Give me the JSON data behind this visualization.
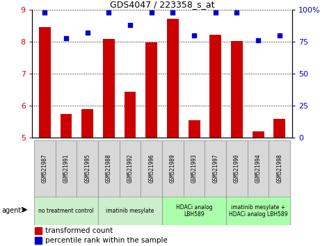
{
  "title": "GDS4047 / 223358_s_at",
  "samples": [
    "GSM521987",
    "GSM521991",
    "GSM521995",
    "GSM521988",
    "GSM521992",
    "GSM521996",
    "GSM521989",
    "GSM521993",
    "GSM521997",
    "GSM521990",
    "GSM521994",
    "GSM521998"
  ],
  "bar_values": [
    8.45,
    5.75,
    5.9,
    8.1,
    6.45,
    7.98,
    8.72,
    5.55,
    8.22,
    8.02,
    5.2,
    5.6
  ],
  "dot_values": [
    98,
    78,
    82,
    98,
    88,
    98,
    98,
    80,
    98,
    98,
    76,
    80
  ],
  "ylim_left": [
    5,
    9
  ],
  "ylim_right": [
    0,
    100
  ],
  "yticks_left": [
    5,
    6,
    7,
    8,
    9
  ],
  "yticks_right": [
    0,
    25,
    50,
    75,
    100
  ],
  "ytick_labels_right": [
    "0",
    "25",
    "50",
    "75",
    "100%"
  ],
  "bar_color": "#cc0000",
  "dot_color": "#0000cc",
  "bar_width": 0.55,
  "groups": [
    {
      "label": "no treatment control",
      "indices": [
        0,
        1,
        2
      ],
      "color": "#cceecc"
    },
    {
      "label": "imatinib mesylate",
      "indices": [
        3,
        4,
        5
      ],
      "color": "#cceecc"
    },
    {
      "label": "HDACi analog\nLBH589",
      "indices": [
        6,
        7,
        8
      ],
      "color": "#aaffaa"
    },
    {
      "label": "imatinib mesylate +\nHDACi analog LBH589",
      "indices": [
        9,
        10,
        11
      ],
      "color": "#aaffaa"
    }
  ],
  "sample_box_color": "#d8d8d8",
  "legend_bar_label": "transformed count",
  "legend_dot_label": "percentile rank within the sample",
  "agent_label": "agent",
  "grid_style": "dotted",
  "background_color": "#ffffff",
  "plot_bg_color": "#ffffff",
  "tick_label_color_left": "#cc0000",
  "tick_label_color_right": "#0000cc",
  "title_fontsize": 9
}
